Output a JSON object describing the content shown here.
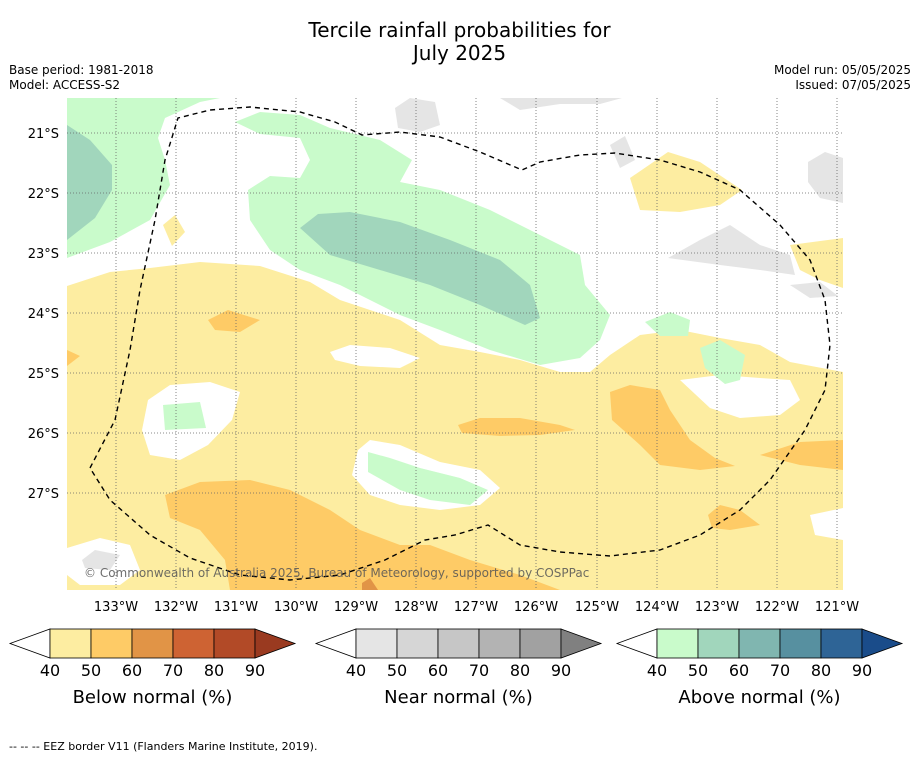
{
  "title_line1": "Tercile rainfall probabilities for",
  "title_line2": "July 2025",
  "base_period": "Base period: 1981-2018",
  "model": "Model: ACCESS-S2",
  "model_run": "Model run: 05/05/2025",
  "issued": "Issued: 07/05/2025",
  "copyright": "© Commonwealth of Australia 2025, Bureau of Meteorology, supported by COSPPac",
  "lat_labels": [
    "21°S",
    "22°S",
    "23°S",
    "24°S",
    "25°S",
    "26°S",
    "27°S"
  ],
  "lon_labels": [
    "133°W",
    "132°W",
    "131°W",
    "130°W",
    "129°W",
    "128°W",
    "127°W",
    "126°W",
    "125°W",
    "124°W",
    "123°W",
    "122°W",
    "121°W"
  ],
  "legends": [
    {
      "label": "Below normal (%)",
      "ticks": [
        "40",
        "50",
        "60",
        "70",
        "80",
        "90"
      ],
      "colors": [
        "#fdeda1",
        "#fecb66",
        "#e19446",
        "#ce6333",
        "#b24a27",
        "#9a3a20"
      ]
    },
    {
      "label": "Near normal (%)",
      "ticks": [
        "40",
        "50",
        "60",
        "70",
        "80",
        "90"
      ],
      "colors": [
        "#e5e5e5",
        "#d6d6d6",
        "#c6c6c6",
        "#b3b3b3",
        "#a1a1a1",
        "#808080"
      ]
    },
    {
      "label": "Above normal (%)",
      "ticks": [
        "40",
        "50",
        "60",
        "70",
        "80",
        "90"
      ],
      "colors": [
        "#c9fbcb",
        "#a1d6bc",
        "#80b6b0",
        "#5790a0",
        "#2e6496",
        "#1a4c8a"
      ]
    }
  ],
  "footnote": "--  --  -- EEZ border V11 (Flanders Marine Institute, 2019)."
}
